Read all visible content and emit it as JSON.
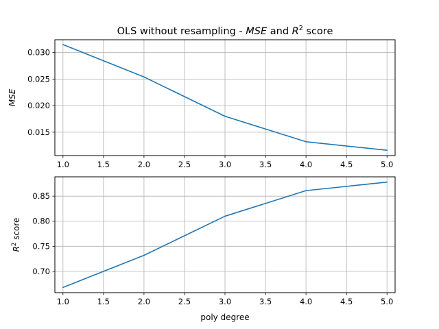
{
  "figure": {
    "title_prefix": "OLS without resampling - ",
    "title_mse": "MSE",
    "title_and": " and ",
    "title_r": "R",
    "title_sup": "2",
    "title_suffix": " score"
  },
  "chart_data": [
    {
      "type": "line",
      "title": "OLS without resampling - MSE and R² score",
      "xlabel": "",
      "ylabel": "MSE",
      "x": [
        1.0,
        2.0,
        3.0,
        4.0,
        5.0
      ],
      "series": [
        {
          "values": [
            0.0315,
            0.0254,
            0.018,
            0.0132,
            0.0116
          ],
          "color": "#1f77b4"
        }
      ],
      "xlim": [
        0.9,
        5.1
      ],
      "ylim": [
        0.01059,
        0.03241
      ],
      "xticks": [
        "1.0",
        "1.5",
        "2.0",
        "2.5",
        "3.0",
        "3.5",
        "4.0",
        "4.5",
        "5.0"
      ],
      "xtick_values": [
        1.0,
        1.5,
        2.0,
        2.5,
        3.0,
        3.5,
        4.0,
        4.5,
        5.0
      ],
      "yticks": [
        "0.015",
        "0.020",
        "0.025",
        "0.030"
      ],
      "ytick_values": [
        0.015,
        0.02,
        0.025,
        0.03
      ],
      "grid": true
    },
    {
      "type": "line",
      "xlabel": "poly degree",
      "ylabel_main": "R",
      "ylabel_sup": "2",
      "ylabel_suffix": " score",
      "ylabel": "R² score",
      "x": [
        1.0,
        2.0,
        3.0,
        4.0,
        5.0
      ],
      "series": [
        {
          "values": [
            0.668,
            0.732,
            0.81,
            0.861,
            0.878
          ],
          "color": "#1f77b4"
        }
      ],
      "xlim": [
        0.9,
        5.1
      ],
      "ylim": [
        0.6575,
        0.8885
      ],
      "xticks": [
        "1.0",
        "1.5",
        "2.0",
        "2.5",
        "3.0",
        "3.5",
        "4.0",
        "4.5",
        "5.0"
      ],
      "xtick_values": [
        1.0,
        1.5,
        2.0,
        2.5,
        3.0,
        3.5,
        4.0,
        4.5,
        5.0
      ],
      "yticks": [
        "0.70",
        "0.75",
        "0.80",
        "0.85"
      ],
      "ytick_values": [
        0.7,
        0.75,
        0.8,
        0.85
      ],
      "grid": true
    }
  ]
}
